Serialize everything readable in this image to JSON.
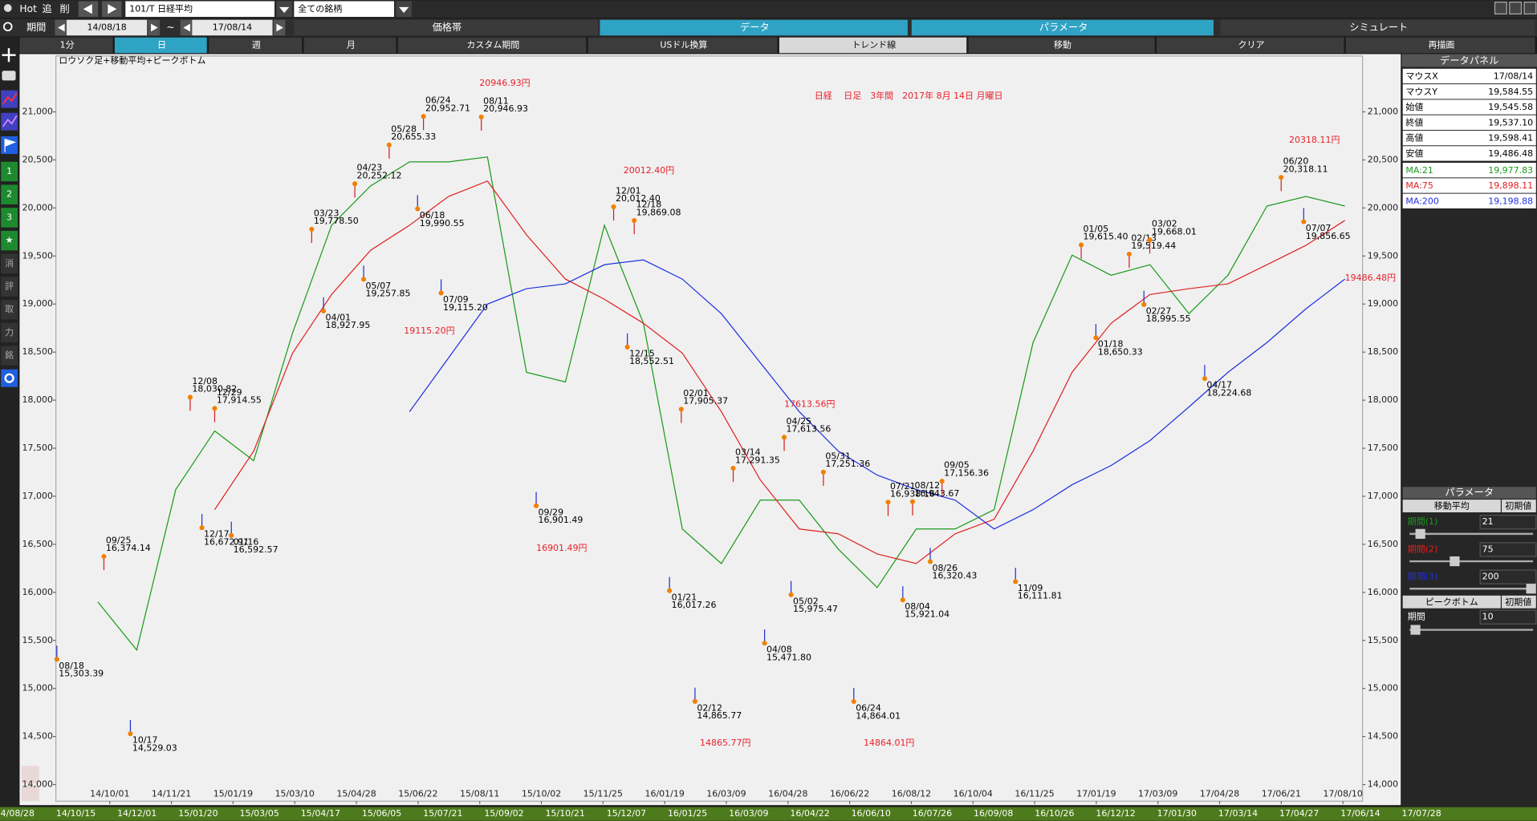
{
  "toolbar": {
    "hot": "Hot",
    "add": "追",
    "delete": "削",
    "symbol": "101/T 日経平均",
    "universe": "全ての銘柄",
    "period": "期間",
    "start": "14/08/18",
    "tilde": "~",
    "end": "17/08/14"
  },
  "tabs": [
    "価格帯",
    "データ",
    "パラメータ",
    "シミュレート"
  ],
  "buttons": [
    "1分",
    "日",
    "週",
    "月",
    "カスタム期間",
    "USドル換算",
    "トレンド線",
    "移動",
    "クリア",
    "再描画"
  ],
  "sidebar": [
    "1",
    "2",
    "3",
    "★",
    "消",
    "評",
    "取",
    "力",
    "銘"
  ],
  "chart_data": {
    "type": "line",
    "title": "日経　 日足　3年間　2017年 8月 14日 月曜日",
    "subtitle": "ロウソク足+移動平均+ピークボトム",
    "ylim": [
      13827,
      21581
    ],
    "yticks": [
      {
        "value": 14000,
        "label": "14,000"
      },
      {
        "value": 14500,
        "label": "14,500"
      },
      {
        "value": 15000,
        "label": "15,000"
      },
      {
        "value": 15500,
        "label": "15,500"
      },
      {
        "value": 16000,
        "label": "16,000"
      },
      {
        "value": 16500,
        "label": "16,500"
      },
      {
        "value": 17000,
        "label": "17,000"
      },
      {
        "value": 17500,
        "label": "17,500"
      },
      {
        "value": 18000,
        "label": "18,000"
      },
      {
        "value": 18500,
        "label": "18,500"
      },
      {
        "value": 19000,
        "label": "19,000"
      },
      {
        "value": 19500,
        "label": "19,500"
      },
      {
        "value": 20000,
        "label": "20,000"
      },
      {
        "value": 20500,
        "label": "20,500"
      },
      {
        "value": 21000,
        "label": "21,000"
      }
    ],
    "date_axis": [
      "14/10/01",
      "14/11/21",
      "15/01/19",
      "15/03/10",
      "15/04/28",
      "15/06/22",
      "15/08/11",
      "15/10/02",
      "15/11/25",
      "16/01/19",
      "16/03/09",
      "16/04/28",
      "16/06/22",
      "16/08/12",
      "16/10/04",
      "16/11/25",
      "17/01/19",
      "17/03/09",
      "17/04/28",
      "17/06/21",
      "17/08/10"
    ],
    "date_axis_lower": [
      "14/08/28",
      "14/10/15",
      "14/12/01",
      "15/01/20",
      "15/03/05",
      "15/04/17",
      "15/06/05",
      "15/07/21",
      "15/09/02",
      "15/10/21",
      "15/12/07",
      "16/01/25",
      "16/03/09",
      "16/04/22",
      "16/06/10",
      "16/07/26",
      "16/09/08",
      "16/10/26",
      "16/12/12",
      "17/01/30",
      "17/03/14",
      "17/04/27",
      "17/06/14",
      "17/07/28"
    ],
    "series": [
      {
        "name": "MA:21",
        "color": "#1a9a1a",
        "values": [
          null,
          15900,
          15400,
          17070,
          17680,
          17370,
          18700,
          19820,
          20230,
          20480,
          20480,
          20530,
          18290,
          18190,
          19820,
          18800,
          16660,
          16300,
          16960,
          16960,
          16450,
          16050,
          16660,
          16660,
          16860,
          18600,
          19510,
          19300,
          19410,
          18900,
          19300,
          20020,
          20120,
          20020
        ]
      },
      {
        "name": "MA:75",
        "color": "#e02020",
        "values": [
          null,
          null,
          null,
          null,
          16860,
          17470,
          18490,
          19100,
          19560,
          19820,
          20120,
          20280,
          19720,
          19260,
          19050,
          18800,
          18490,
          17880,
          17170,
          16660,
          16610,
          16400,
          16300,
          16610,
          16760,
          17470,
          18290,
          18800,
          19100,
          19160,
          19210,
          19410,
          19610,
          19870
        ]
      },
      {
        "name": "MA:200",
        "color": "#2030e0",
        "values": [
          null,
          null,
          null,
          null,
          null,
          null,
          null,
          null,
          null,
          17880,
          18440,
          19000,
          19160,
          19210,
          19410,
          19460,
          19260,
          18900,
          18390,
          17880,
          17470,
          17220,
          17070,
          16960,
          16660,
          16860,
          17120,
          17320,
          17580,
          17930,
          18290,
          18600,
          18950,
          19260
        ]
      }
    ],
    "peaks": {
      "dates": [
        "08/18",
        "09/25",
        "10/17",
        "12/08",
        "12/17",
        "12/29",
        "01/16",
        "03/23",
        "04/01",
        "04/23",
        "05/07",
        "05/28",
        "06/18",
        "06/24",
        "07/09",
        "08/11",
        "09/29",
        "12/01",
        "12/15",
        "12/18",
        "01/21",
        "02/01",
        "02/12",
        "03/14",
        "04/08",
        "04/25",
        "05/02",
        "05/31",
        "06/24",
        "07/21",
        "08/04",
        "08/12",
        "08/26",
        "09/05",
        "11/09",
        "01/05",
        "01/18",
        "02/13",
        "02/27",
        "03/02",
        "04/17",
        "06/20",
        "07/07"
      ],
      "values": [
        15303.39,
        16374.14,
        14529.03,
        18030.82,
        16672.91,
        17914.55,
        16592.57,
        19778.5,
        18927.95,
        20252.12,
        19257.85,
        20655.33,
        19990.55,
        20952.71,
        19115.2,
        20946.93,
        16901.49,
        20012.4,
        18552.51,
        19869.08,
        16017.26,
        17905.37,
        14865.77,
        17291.35,
        15471.8,
        17613.56,
        15975.47,
        17251.36,
        14864.01,
        16938.16,
        15921.04,
        16943.67,
        16320.43,
        17156.36,
        16111.81,
        19615.4,
        18650.33,
        19519.44,
        18995.55,
        19668.01,
        18224.68,
        20318.11,
        19856.65
      ],
      "value_labels": [
        "15,303.39",
        "16,374.14",
        "14,529.03",
        "18,030.82",
        "16,672.91",
        "17,914.55",
        "16,592.57",
        "19,778.50",
        "18,927.95",
        "20,252.12",
        "19,257.85",
        "20,655.33",
        "19,990.55",
        "20,952.71",
        "19,115.20",
        "20,946.93",
        "16,901.49",
        "20,012.40",
        "18,552.51",
        "19,869.08",
        "16,017.26",
        "17,905.37",
        "14,865.77",
        "17,291.35",
        "15,471.80",
        "17,613.56",
        "15,975.47",
        "17,251.36",
        "14,864.01",
        "16,938.16",
        "15,921.04",
        "16,943.67",
        "16,320.43",
        "17,156.36",
        "16,111.81",
        "19,615.40",
        "18,650.33",
        "19,519.44",
        "18,995.55",
        "19,668.01",
        "18,224.68",
        "20,318.11",
        "19,856.65"
      ]
    },
    "annotations": [
      "20946.93円",
      "20012.40円",
      "19115.20円",
      "16901.49円",
      "17613.56円",
      "14865.77円",
      "14864.01円",
      "20318.11円",
      "19486.48円"
    ]
  },
  "data_panel": {
    "title": "データパネル",
    "rows": [
      [
        "マウスX",
        "17/08/14"
      ],
      [
        "マウスY",
        "19,584.55"
      ],
      [
        "始値",
        "19,545.58"
      ],
      [
        "終値",
        "19,537.10"
      ],
      [
        "高値",
        "19,598.41"
      ],
      [
        "安値",
        "19,486.48"
      ]
    ],
    "ma_values": [
      "19,977.83",
      "19,898.11",
      "19,198.88"
    ]
  },
  "param_panel": {
    "title": "パラメータ",
    "ma_title": "移動平均",
    "reset": "初期値",
    "periods": [
      {
        "label": "期間(1)",
        "value": 21
      },
      {
        "label": "期間(2)",
        "value": 75
      },
      {
        "label": "期間(3)",
        "value": 200
      }
    ],
    "peak_title": "ピークボトム",
    "peak_reset": "初期値",
    "peak_period": {
      "label": "期間",
      "value": 10
    }
  }
}
